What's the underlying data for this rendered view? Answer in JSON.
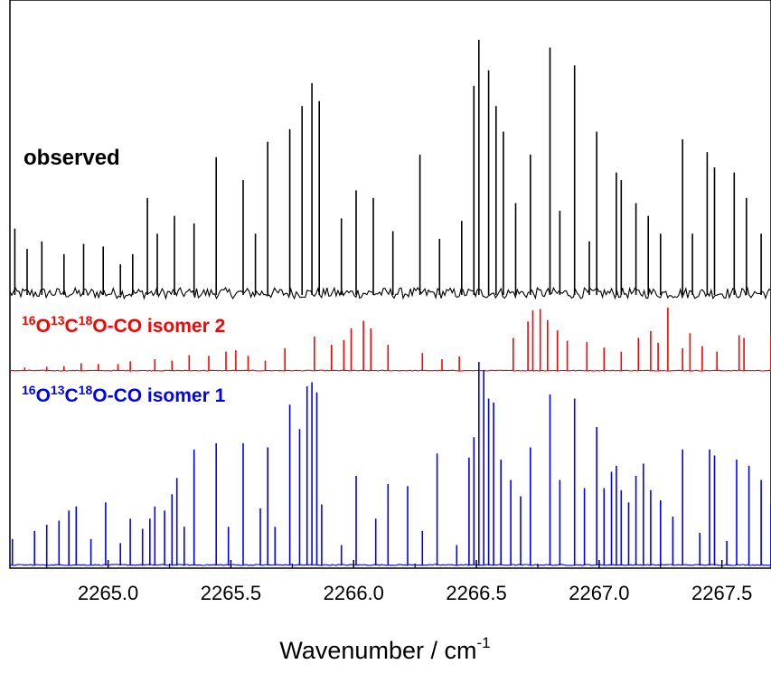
{
  "chart_data": {
    "type": "line",
    "title": "",
    "xlabel": "Wavenumber / cm",
    "xlabel_sup": "-1",
    "ylabel": "",
    "xlim": [
      2264.6,
      2267.7
    ],
    "x_ticks": [
      "2265.0",
      "2265.5",
      "2266.0",
      "2266.5",
      "2267.0",
      "2267.5"
    ],
    "series": [
      {
        "name": "observed",
        "color": "#000000",
        "baseline": 0,
        "lines": [
          [
            2264.62,
            0.26
          ],
          [
            2264.67,
            0.18
          ],
          [
            2264.73,
            0.21
          ],
          [
            2264.82,
            0.16
          ],
          [
            2264.9,
            0.2
          ],
          [
            2264.98,
            0.19
          ],
          [
            2265.05,
            0.12
          ],
          [
            2265.1,
            0.16
          ],
          [
            2265.16,
            0.38
          ],
          [
            2265.2,
            0.24
          ],
          [
            2265.27,
            0.31
          ],
          [
            2265.35,
            0.28
          ],
          [
            2265.44,
            0.54
          ],
          [
            2265.55,
            0.45
          ],
          [
            2265.6,
            0.24
          ],
          [
            2265.65,
            0.6
          ],
          [
            2265.74,
            0.65
          ],
          [
            2265.79,
            0.74
          ],
          [
            2265.83,
            0.83
          ],
          [
            2265.86,
            0.76
          ],
          [
            2265.95,
            0.3
          ],
          [
            2266.01,
            0.41
          ],
          [
            2266.08,
            0.38
          ],
          [
            2266.16,
            0.25
          ],
          [
            2266.27,
            0.55
          ],
          [
            2266.35,
            0.22
          ],
          [
            2266.44,
            0.29
          ],
          [
            2266.49,
            0.82
          ],
          [
            2266.51,
            1.0
          ],
          [
            2266.55,
            0.88
          ],
          [
            2266.58,
            0.74
          ],
          [
            2266.61,
            0.64
          ],
          [
            2266.66,
            0.36
          ],
          [
            2266.72,
            0.55
          ],
          [
            2266.8,
            0.97
          ],
          [
            2266.84,
            0.33
          ],
          [
            2266.9,
            0.9
          ],
          [
            2266.96,
            0.21
          ],
          [
            2266.99,
            0.64
          ],
          [
            2267.07,
            0.48
          ],
          [
            2267.09,
            0.45
          ],
          [
            2267.15,
            0.36
          ],
          [
            2267.2,
            0.31
          ],
          [
            2267.25,
            0.24
          ],
          [
            2267.34,
            0.61
          ],
          [
            2267.38,
            0.24
          ],
          [
            2267.44,
            0.56
          ],
          [
            2267.47,
            0.5
          ],
          [
            2267.55,
            0.48
          ],
          [
            2267.6,
            0.38
          ],
          [
            2267.66,
            0.24
          ]
        ]
      },
      {
        "name": "¹⁶O¹³C¹⁸O-CO isomer 2",
        "color": "#ff0000",
        "baseline": 0,
        "lines": [
          [
            2264.66,
            0.05
          ],
          [
            2264.75,
            0.06
          ],
          [
            2264.82,
            0.07
          ],
          [
            2264.89,
            0.11
          ],
          [
            2264.96,
            0.1
          ],
          [
            2265.04,
            0.1
          ],
          [
            2265.09,
            0.14
          ],
          [
            2265.19,
            0.17
          ],
          [
            2265.26,
            0.15
          ],
          [
            2265.33,
            0.23
          ],
          [
            2265.41,
            0.22
          ],
          [
            2265.48,
            0.28
          ],
          [
            2265.52,
            0.3
          ],
          [
            2265.57,
            0.22
          ],
          [
            2265.64,
            0.15
          ],
          [
            2265.72,
            0.33
          ],
          [
            2265.84,
            0.5
          ],
          [
            2265.91,
            0.38
          ],
          [
            2265.96,
            0.45
          ],
          [
            2265.99,
            0.62
          ],
          [
            2266.04,
            0.73
          ],
          [
            2266.07,
            0.62
          ],
          [
            2266.14,
            0.38
          ],
          [
            2266.28,
            0.26
          ],
          [
            2266.36,
            0.17
          ],
          [
            2266.43,
            0.21
          ],
          [
            2266.65,
            0.48
          ],
          [
            2266.71,
            0.72
          ],
          [
            2266.73,
            0.88
          ],
          [
            2266.76,
            0.9
          ],
          [
            2266.79,
            0.74
          ],
          [
            2266.83,
            0.59
          ],
          [
            2266.87,
            0.44
          ],
          [
            2266.95,
            0.42
          ],
          [
            2267.02,
            0.34
          ],
          [
            2267.09,
            0.28
          ],
          [
            2267.16,
            0.48
          ],
          [
            2267.21,
            0.58
          ],
          [
            2267.24,
            0.41
          ],
          [
            2267.28,
            0.92
          ],
          [
            2267.34,
            0.33
          ],
          [
            2267.37,
            0.55
          ],
          [
            2267.42,
            0.36
          ],
          [
            2267.48,
            0.28
          ],
          [
            2267.57,
            0.52
          ],
          [
            2267.59,
            0.48
          ],
          [
            2267.7,
            0.52
          ]
        ]
      },
      {
        "name": "¹⁶O¹³C¹⁸O-CO isomer 1",
        "color": "#0000ff",
        "baseline": 0,
        "lines": [
          [
            2264.61,
            0.13
          ],
          [
            2264.7,
            0.17
          ],
          [
            2264.75,
            0.2
          ],
          [
            2264.8,
            0.22
          ],
          [
            2264.84,
            0.27
          ],
          [
            2264.87,
            0.29
          ],
          [
            2264.93,
            0.13
          ],
          [
            2264.99,
            0.31
          ],
          [
            2265.05,
            0.11
          ],
          [
            2265.09,
            0.23
          ],
          [
            2265.14,
            0.18
          ],
          [
            2265.17,
            0.23
          ],
          [
            2265.19,
            0.29
          ],
          [
            2265.23,
            0.27
          ],
          [
            2265.26,
            0.35
          ],
          [
            2265.28,
            0.43
          ],
          [
            2265.31,
            0.19
          ],
          [
            2265.35,
            0.57
          ],
          [
            2265.44,
            0.6
          ],
          [
            2265.49,
            0.19
          ],
          [
            2265.55,
            0.6
          ],
          [
            2265.62,
            0.28
          ],
          [
            2265.65,
            0.58
          ],
          [
            2265.68,
            0.19
          ],
          [
            2265.74,
            0.79
          ],
          [
            2265.78,
            0.67
          ],
          [
            2265.81,
            0.88
          ],
          [
            2265.83,
            0.9
          ],
          [
            2265.85,
            0.85
          ],
          [
            2265.87,
            0.3
          ],
          [
            2265.95,
            0.1
          ],
          [
            2266.01,
            0.44
          ],
          [
            2266.09,
            0.23
          ],
          [
            2266.14,
            0.4
          ],
          [
            2266.22,
            0.39
          ],
          [
            2266.28,
            0.17
          ],
          [
            2266.34,
            0.55
          ],
          [
            2266.42,
            0.1
          ],
          [
            2266.47,
            0.53
          ],
          [
            2266.49,
            0.63
          ],
          [
            2266.51,
            1.0
          ],
          [
            2266.53,
            0.96
          ],
          [
            2266.55,
            0.82
          ],
          [
            2266.57,
            0.8
          ],
          [
            2266.6,
            0.52
          ],
          [
            2266.64,
            0.42
          ],
          [
            2266.68,
            0.34
          ],
          [
            2266.72,
            0.58
          ],
          [
            2266.8,
            0.84
          ],
          [
            2266.84,
            0.42
          ],
          [
            2266.9,
            0.82
          ],
          [
            2266.94,
            0.38
          ],
          [
            2266.99,
            0.68
          ],
          [
            2267.02,
            0.38
          ],
          [
            2267.05,
            0.46
          ],
          [
            2267.07,
            0.49
          ],
          [
            2267.09,
            0.37
          ],
          [
            2267.12,
            0.31
          ],
          [
            2267.15,
            0.44
          ],
          [
            2267.18,
            0.5
          ],
          [
            2267.21,
            0.37
          ],
          [
            2267.25,
            0.32
          ],
          [
            2267.3,
            0.24
          ],
          [
            2267.34,
            0.57
          ],
          [
            2267.41,
            0.16
          ],
          [
            2267.45,
            0.57
          ],
          [
            2267.47,
            0.54
          ],
          [
            2267.52,
            0.12
          ],
          [
            2267.56,
            0.52
          ],
          [
            2267.61,
            0.49
          ],
          [
            2267.66,
            0.42
          ],
          [
            2267.7,
            0.3
          ]
        ]
      }
    ],
    "annotations": [
      {
        "text": "observed",
        "color": "#000000"
      },
      {
        "text": "¹⁶O¹³C¹⁸O-CO isomer 2",
        "color": "#ff0000"
      },
      {
        "text": "¹⁶O¹³C¹⁸O-CO isomer 1",
        "color": "#0000ff"
      }
    ],
    "grid": false,
    "legend": "none"
  }
}
